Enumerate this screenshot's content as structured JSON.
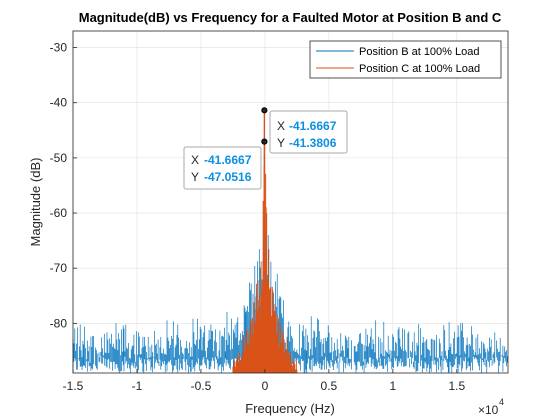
{
  "chart_data": {
    "type": "line",
    "title": "Magnitude(dB) vs Frequency for a Faulted Motor at Position B and C",
    "xlabel": "Frequency (Hz)",
    "ylabel": "Magnitude (dB)",
    "x_exponent_label": "×10",
    "x_exponent_value": "4",
    "xlim": [
      -15000,
      19000
    ],
    "ylim": [
      -89,
      -27
    ],
    "x_ticks": [
      -15000,
      -10000,
      -5000,
      0,
      5000,
      10000,
      15000
    ],
    "x_tick_labels": [
      "-1.5",
      "-1",
      "-0.5",
      "0",
      "0.5",
      "1",
      "1.5"
    ],
    "y_ticks": [
      -80,
      -70,
      -60,
      -50,
      -40,
      -30
    ],
    "y_tick_labels": [
      "-80",
      "-70",
      "-60",
      "-50",
      "-40",
      "-30"
    ],
    "grid": true,
    "legend_position": "top-right",
    "series": [
      {
        "name": "Position B at 100% Load",
        "color": "#0072bd",
        "peak": {
          "x": -41.6667,
          "y": -47.0516
        },
        "description_noise_floor_db": [
          -89,
          -77
        ],
        "x": [
          -15000,
          -13000,
          -11000,
          -9000,
          -7000,
          -5000,
          -3000,
          -2000,
          -1500,
          -1000,
          -700,
          -500,
          -300,
          -150,
          -42,
          150,
          300,
          500,
          700,
          1000,
          1500,
          2000,
          3000,
          5000,
          7000,
          9000,
          11000,
          13000,
          15000,
          17000,
          19000
        ],
        "y": [
          -78,
          -80,
          -79,
          -80,
          -79,
          -78,
          -76,
          -75,
          -72,
          -69,
          -67,
          -66,
          -61,
          -55,
          -47.0516,
          -55,
          -61,
          -66,
          -68,
          -70,
          -73,
          -76,
          -77,
          -79,
          -80,
          -78,
          -79,
          -80,
          -78,
          -80,
          -81
        ]
      },
      {
        "name": "Position C at 100% Load",
        "color": "#d95319",
        "peak": {
          "x": -41.6667,
          "y": -41.3806
        },
        "x": [
          -2500,
          -2000,
          -1500,
          -1000,
          -700,
          -500,
          -300,
          -150,
          -42,
          150,
          300,
          500,
          700,
          1000,
          1500,
          2000,
          2500
        ],
        "y": [
          -86,
          -84,
          -80,
          -77,
          -72,
          -69,
          -66,
          -58,
          -41.3806,
          -58,
          -66,
          -69,
          -73,
          -77,
          -81,
          -84,
          -86
        ]
      }
    ],
    "datatips": [
      {
        "x_label": "X",
        "x_value": "-41.6667",
        "y_label": "Y",
        "y_value": "-41.3806"
      },
      {
        "x_label": "X",
        "x_value": "-41.6667",
        "y_label": "Y",
        "y_value": "-47.0516"
      }
    ]
  }
}
